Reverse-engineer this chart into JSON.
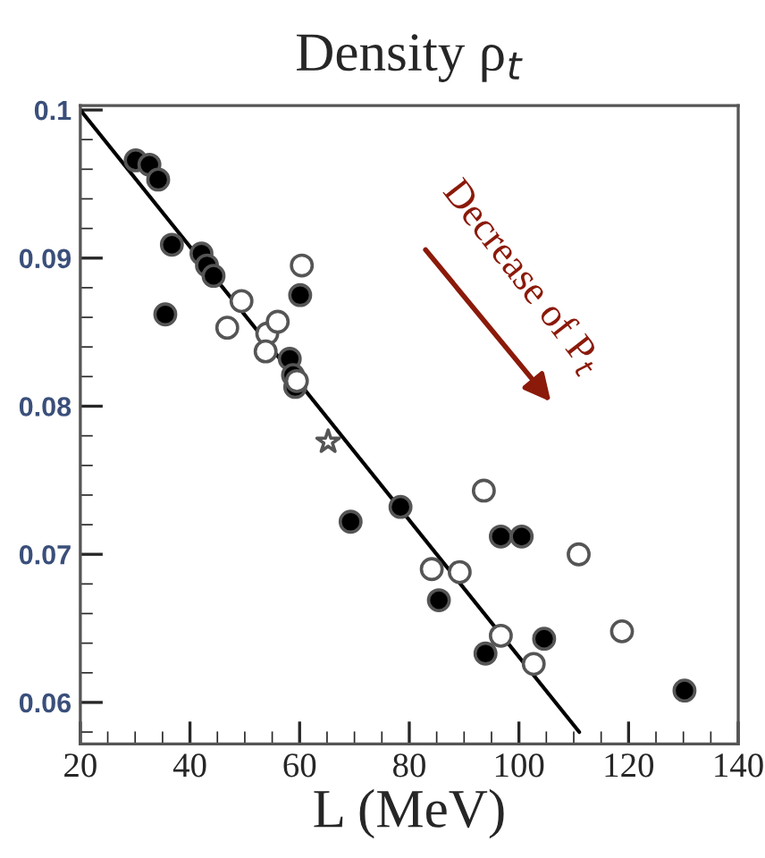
{
  "chart_data": {
    "type": "scatter",
    "title": "Density ρ$_{t}$",
    "xlabel": "L (MeV)",
    "xlim": [
      20,
      140
    ],
    "xticks": [
      20,
      40,
      60,
      80,
      100,
      120,
      140
    ],
    "ylim": [
      0.0572,
      0.1003
    ],
    "yticks": [
      0.06,
      0.07,
      0.08,
      0.09,
      0.1
    ],
    "grid": false,
    "legend": false,
    "annotations": [
      "Decrease of P$_{t}$"
    ],
    "series": [
      {
        "marker": "circle",
        "color": "#000000",
        "x": [
          30.1,
          32.6,
          34.2,
          36.7,
          35.5,
          42.1,
          43.1,
          44.3,
          60.1,
          58.2,
          58.8,
          59.2,
          69.3,
          78.4,
          96.7,
          100.5,
          85.4,
          93.9,
          104.6,
          130.2
        ],
        "values": [
          0.0966,
          0.0963,
          0.0953,
          0.0909,
          0.0862,
          0.0903,
          0.0895,
          0.0888,
          0.0875,
          0.0832,
          0.0821,
          0.0813,
          0.0722,
          0.0732,
          0.0712,
          0.0712,
          0.0669,
          0.0633,
          0.0643,
          0.0608
        ]
      },
      {
        "marker": "circle",
        "color": "#ffffff",
        "x": [
          60.4,
          49.4,
          46.8,
          54.1,
          53.8,
          56.0,
          59.5,
          93.6,
          110.9,
          84.1,
          89.2,
          96.7,
          102.7,
          118.8
        ],
        "values": [
          0.0895,
          0.0871,
          0.0853,
          0.0849,
          0.0837,
          0.0857,
          0.0817,
          0.0743,
          0.07,
          0.069,
          0.0688,
          0.0645,
          0.0626,
          0.0648
        ]
      },
      {
        "marker": "star",
        "color": "#ffffff",
        "x": [
          65.2
        ],
        "values": [
          0.0776
        ]
      },
      {
        "type": "line",
        "color": "#000000",
        "x": [
          20,
          111
        ],
        "values": [
          0.1,
          0.058
        ]
      }
    ]
  }
}
